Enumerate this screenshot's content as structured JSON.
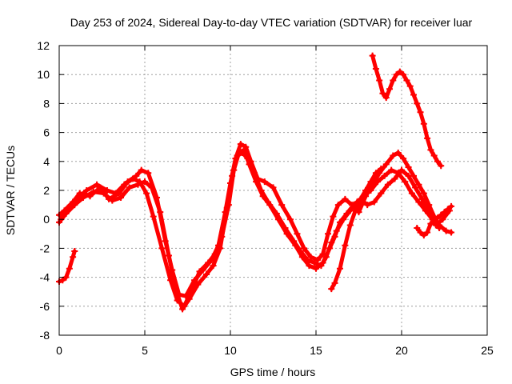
{
  "chart_data": {
    "type": "line",
    "title": "Day 253 of 2024, Sidereal Day-to-day VTEC variation (SDTVAR) for receiver luar",
    "xlabel": "GPS time / hours",
    "ylabel": "SDTVAR / TECUs",
    "xlim": [
      0,
      25
    ],
    "ylim": [
      -8,
      12
    ],
    "xticks": [
      0,
      5,
      10,
      15,
      20,
      25
    ],
    "yticks": [
      -8,
      -6,
      -4,
      -2,
      0,
      2,
      4,
      6,
      8,
      10,
      12
    ],
    "grid": true,
    "marker": "plus",
    "color": "#ff0000",
    "series": [
      {
        "name": "s1",
        "x": [
          0.0,
          0.3,
          0.8,
          1.2,
          1.8,
          2.4,
          2.9,
          3.5,
          4.0,
          4.5,
          4.8,
          5.2,
          5.7,
          6.2,
          6.6,
          7.0,
          7.4,
          7.9,
          8.4,
          8.9,
          9.3,
          9.7,
          10.0,
          10.3,
          10.6,
          10.9,
          11.2,
          11.6,
          12.0,
          12.5,
          13.0,
          13.5,
          13.9,
          14.3,
          14.7,
          15.1,
          15.4,
          15.7,
          16.0,
          16.3,
          16.7,
          17.1,
          17.5,
          17.9,
          18.3,
          18.7,
          19.1,
          19.5,
          19.8,
          20.1,
          20.4,
          20.7,
          21.0,
          21.3,
          21.6,
          21.9,
          22.2
        ],
        "y": [
          0.3,
          0.6,
          1.2,
          1.8,
          1.6,
          2.2,
          1.4,
          1.8,
          2.6,
          3.0,
          3.4,
          3.2,
          1.5,
          -1.5,
          -3.5,
          -5.2,
          -5.3,
          -4.2,
          -3.5,
          -2.8,
          -1.8,
          0.5,
          2.5,
          4.2,
          5.2,
          5.0,
          4.0,
          2.8,
          2.6,
          2.2,
          1.0,
          0.0,
          -1.0,
          -2.0,
          -2.6,
          -2.8,
          -2.4,
          -1.0,
          0.2,
          1.0,
          1.4,
          1.0,
          0.5,
          1.6,
          2.4,
          3.2,
          3.8,
          4.4,
          4.6,
          4.2,
          3.6,
          3.0,
          2.4,
          1.8,
          1.0,
          0.2,
          -0.6
        ]
      },
      {
        "name": "s2",
        "x": [
          0.0,
          0.4,
          0.9,
          1.4,
          2.0,
          2.6,
          3.1,
          3.6,
          4.1,
          4.6,
          5.0,
          5.4,
          5.9,
          6.4,
          6.8,
          7.2,
          7.6,
          8.1,
          8.6,
          9.0,
          9.4,
          9.8,
          10.1,
          10.4,
          10.7,
          11.0,
          11.4,
          11.8,
          12.2,
          12.7,
          13.2,
          13.7,
          14.1,
          14.5,
          14.9,
          15.3,
          15.6,
          15.9,
          16.2,
          16.6,
          17.0,
          17.4,
          17.8,
          18.2,
          18.6,
          19.0,
          19.4,
          19.8,
          20.2,
          20.6,
          21.0,
          21.4,
          21.8,
          22.2,
          22.6,
          22.9
        ],
        "y": [
          -0.2,
          0.4,
          1.0,
          1.5,
          1.9,
          1.8,
          1.3,
          1.5,
          2.2,
          2.4,
          2.6,
          2.2,
          0.5,
          -2.5,
          -4.8,
          -6.2,
          -5.5,
          -4.5,
          -3.8,
          -3.2,
          -2.0,
          0.8,
          3.0,
          4.4,
          4.6,
          4.2,
          3.2,
          2.0,
          1.2,
          0.4,
          -0.6,
          -1.5,
          -2.2,
          -2.8,
          -3.0,
          -3.2,
          -2.6,
          -1.6,
          -0.8,
          0.0,
          0.6,
          1.2,
          1.6,
          2.0,
          2.6,
          3.0,
          3.4,
          3.2,
          2.6,
          1.8,
          1.2,
          0.6,
          0.0,
          -0.4,
          -0.8,
          -0.9
        ]
      },
      {
        "name": "s3",
        "x": [
          0.1,
          0.5,
          1.0,
          1.6,
          2.2,
          2.8,
          3.3,
          3.8,
          4.3,
          4.7,
          5.1,
          5.5,
          6.0,
          6.5,
          6.9,
          7.3,
          7.7,
          8.2,
          8.7,
          9.1,
          9.5,
          9.9,
          10.2,
          10.5,
          10.8,
          11.1,
          11.5,
          11.9,
          12.3,
          12.8,
          13.3,
          13.8,
          14.2,
          14.6,
          15.0,
          15.4,
          15.8,
          16.1,
          16.4,
          16.8,
          17.2,
          17.6,
          18.0,
          18.4,
          18.8,
          19.2,
          19.6,
          20.0,
          20.4,
          20.8,
          21.2,
          21.6,
          22.0,
          22.4,
          22.8
        ],
        "y": [
          0.0,
          0.8,
          1.4,
          2.0,
          2.4,
          2.0,
          1.8,
          2.4,
          2.8,
          2.6,
          1.8,
          0.2,
          -2.0,
          -4.2,
          -5.6,
          -6.0,
          -5.0,
          -3.6,
          -3.0,
          -2.4,
          -1.2,
          1.0,
          3.4,
          4.6,
          4.8,
          3.8,
          2.6,
          1.6,
          1.0,
          0.0,
          -1.0,
          -1.8,
          -2.6,
          -3.2,
          -3.4,
          -3.0,
          -2.0,
          -1.2,
          -0.2,
          0.4,
          1.0,
          1.4,
          1.0,
          1.2,
          1.8,
          2.4,
          2.8,
          3.4,
          3.0,
          2.2,
          1.4,
          0.4,
          -0.4,
          0.0,
          0.6
        ]
      },
      {
        "name": "s4",
        "x": [
          0.0,
          0.2,
          0.4,
          0.6,
          0.8,
          0.9
        ],
        "y": [
          -4.3,
          -4.2,
          -4.0,
          -3.4,
          -2.6,
          -2.2
        ]
      },
      {
        "name": "s5",
        "x": [
          18.3,
          18.5,
          18.7,
          18.9,
          19.1,
          19.3,
          19.5,
          19.7,
          19.9,
          20.1,
          20.3,
          20.5,
          20.7,
          20.9,
          21.1,
          21.3,
          21.5,
          21.7,
          21.9,
          22.1,
          22.3
        ],
        "y": [
          11.3,
          10.4,
          9.6,
          8.7,
          8.4,
          9.0,
          9.6,
          10.0,
          10.2,
          10.0,
          9.6,
          9.2,
          8.6,
          8.0,
          7.4,
          6.6,
          5.6,
          4.8,
          4.4,
          4.0,
          3.7
        ]
      },
      {
        "name": "s6",
        "x": [
          15.9,
          16.1,
          16.4,
          16.7,
          17.0,
          17.3,
          17.6,
          17.9,
          18.2,
          18.5,
          18.8
        ],
        "y": [
          -4.8,
          -4.4,
          -3.4,
          -1.8,
          -0.4,
          0.6,
          1.4,
          2.0,
          2.6,
          3.2,
          3.5
        ]
      },
      {
        "name": "s7",
        "x": [
          20.9,
          21.1,
          21.3,
          21.5,
          21.7,
          21.9,
          22.1,
          22.3,
          22.5,
          22.7,
          22.9
        ],
        "y": [
          -0.6,
          -0.9,
          -1.1,
          -0.9,
          -0.3,
          -0.2,
          0.1,
          0.3,
          0.5,
          0.7,
          0.9
        ]
      }
    ]
  }
}
